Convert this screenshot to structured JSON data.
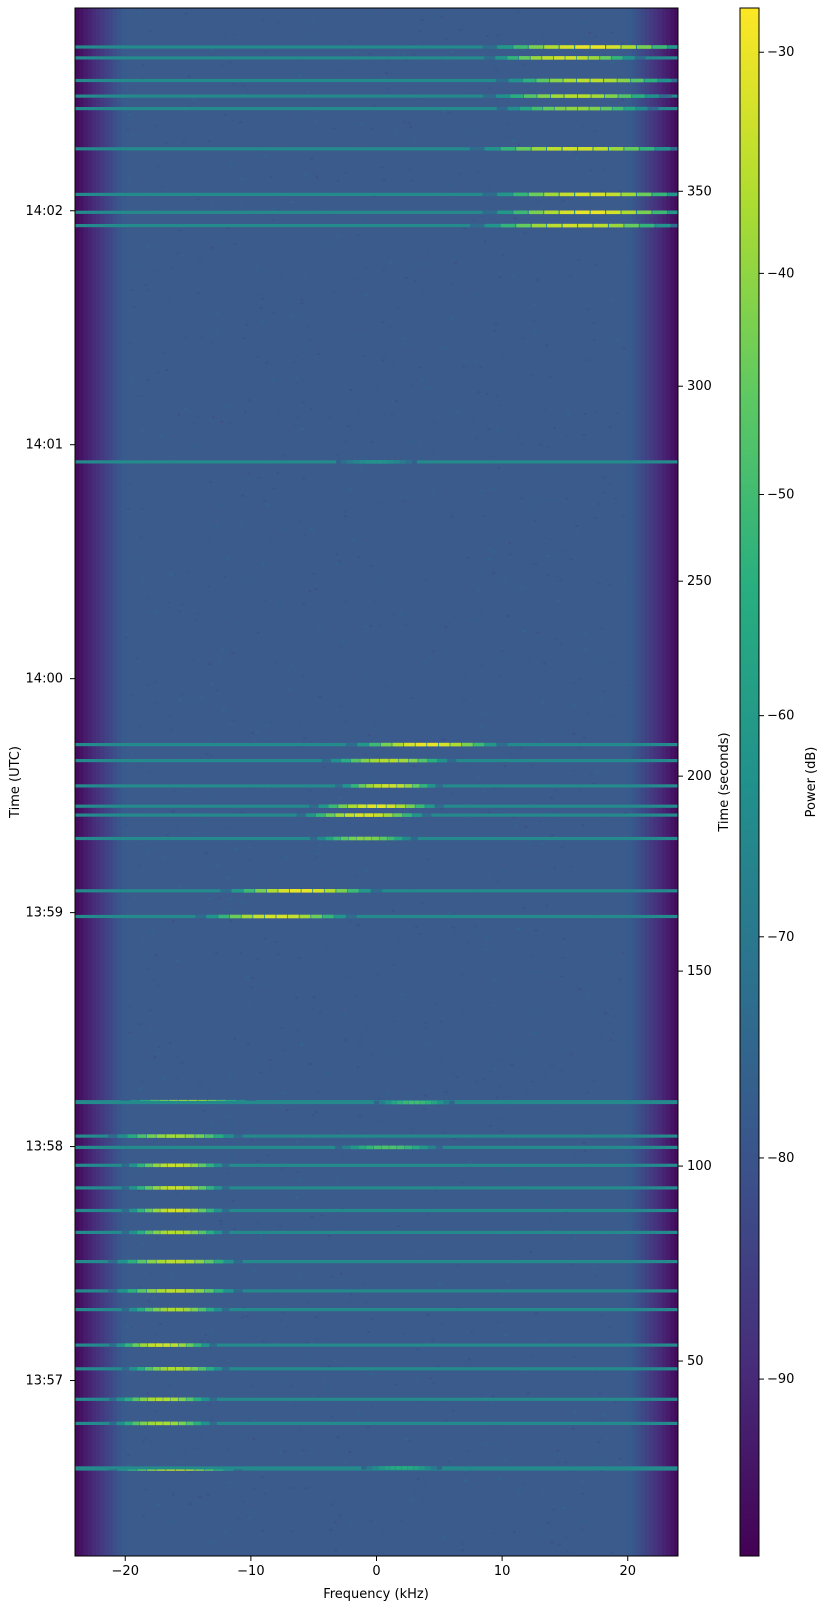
{
  "chart_data": {
    "type": "heatmap",
    "title": "",
    "xlabel": "Frequency (kHz)",
    "ylabel_left": "Time (UTC)",
    "ylabel_right": "Time (seconds)",
    "colorbar_label": "Power (dB)",
    "colormap": "viridis",
    "xlim": [
      -24,
      24
    ],
    "ylim_seconds": [
      0,
      397
    ],
    "x_ticks": [
      {
        "value": -20,
        "label": "−20"
      },
      {
        "value": -10,
        "label": "−10"
      },
      {
        "value": 0,
        "label": "0"
      },
      {
        "value": 10,
        "label": "10"
      },
      {
        "value": 20,
        "label": "20"
      }
    ],
    "y_ticks_utc": [
      {
        "seconds": 45,
        "label": "13:57"
      },
      {
        "seconds": 105,
        "label": "13:58"
      },
      {
        "seconds": 165,
        "label": "13:59"
      },
      {
        "seconds": 225,
        "label": "14:00"
      },
      {
        "seconds": 285,
        "label": "14:01"
      },
      {
        "seconds": 345,
        "label": "14:02"
      }
    ],
    "y_ticks_seconds": [
      {
        "value": 50,
        "label": "50"
      },
      {
        "value": 100,
        "label": "100"
      },
      {
        "value": 150,
        "label": "150"
      },
      {
        "value": 200,
        "label": "200"
      },
      {
        "value": 250,
        "label": "250"
      },
      {
        "value": 300,
        "label": "300"
      },
      {
        "value": 350,
        "label": "350"
      }
    ],
    "colorbar_range_db": [
      -98,
      -28
    ],
    "colorbar_ticks": [
      {
        "value": -30,
        "label": "−30"
      },
      {
        "value": -40,
        "label": "−40"
      },
      {
        "value": -50,
        "label": "−50"
      },
      {
        "value": -60,
        "label": "−60"
      },
      {
        "value": -70,
        "label": "−70"
      },
      {
        "value": -80,
        "label": "−80"
      },
      {
        "value": -90,
        "label": "−90"
      }
    ],
    "noise_floor_db": -78,
    "band_edge_db": -96,
    "passband_khz": [
      -20,
      20
    ],
    "bursts": [
      {
        "t": 387,
        "f_center": 17,
        "f_width": 8,
        "peak_db": -30
      },
      {
        "t": 384.2,
        "f_center": 15,
        "f_width": 6,
        "peak_db": -33
      },
      {
        "t": 378.4,
        "f_center": 17,
        "f_width": 7,
        "peak_db": -35
      },
      {
        "t": 374.4,
        "f_center": 16,
        "f_width": 7,
        "peak_db": -36
      },
      {
        "t": 371.2,
        "f_center": 16,
        "f_width": 6,
        "peak_db": -40
      },
      {
        "t": 360.9,
        "f_center": 16,
        "f_width": 8,
        "peak_db": -33
      },
      {
        "t": 349.2,
        "f_center": 17,
        "f_width": 8,
        "peak_db": -32
      },
      {
        "t": 344.6,
        "f_center": 17,
        "f_width": 8,
        "peak_db": -30
      },
      {
        "t": 341.2,
        "f_center": 16,
        "f_width": 8,
        "peak_db": -33
      },
      {
        "t": 280.6,
        "f_center": 0,
        "f_width": 3,
        "peak_db": -62
      },
      {
        "t": 208.1,
        "f_center": 4,
        "f_width": 6,
        "peak_db": -30
      },
      {
        "t": 204.0,
        "f_center": 1,
        "f_width": 5,
        "peak_db": -36
      },
      {
        "t": 197.5,
        "f_center": 1,
        "f_width": 4,
        "peak_db": -33
      },
      {
        "t": 192.3,
        "f_center": 0,
        "f_width": 5,
        "peak_db": -31
      },
      {
        "t": 190.0,
        "f_center": -1,
        "f_width": 5,
        "peak_db": -32
      },
      {
        "t": 184.0,
        "f_center": -1,
        "f_width": 4,
        "peak_db": -41
      },
      {
        "t": 170.6,
        "f_center": -6,
        "f_width": 6,
        "peak_db": -30
      },
      {
        "t": 164.0,
        "f_center": -8,
        "f_width": 6,
        "peak_db": -32
      },
      {
        "t": 116.5,
        "f_center": -15,
        "f_width": 5,
        "peak_db": -38
      },
      {
        "t": 116.3,
        "f_center": 3,
        "f_width": 3,
        "peak_db": -50
      },
      {
        "t": 107.7,
        "f_center": -16,
        "f_width": 5,
        "peak_db": -38
      },
      {
        "t": 104.8,
        "f_center": 1,
        "f_width": 4,
        "peak_db": -48
      },
      {
        "t": 100.2,
        "f_center": -16,
        "f_width": 4,
        "peak_db": -34
      },
      {
        "t": 94.4,
        "f_center": -16,
        "f_width": 4,
        "peak_db": -34
      },
      {
        "t": 88.6,
        "f_center": -16,
        "f_width": 4,
        "peak_db": -33
      },
      {
        "t": 83.0,
        "f_center": -16,
        "f_width": 4,
        "peak_db": -36
      },
      {
        "t": 75.5,
        "f_center": -16,
        "f_width": 5,
        "peak_db": -35
      },
      {
        "t": 68.0,
        "f_center": -16,
        "f_width": 5,
        "peak_db": -35
      },
      {
        "t": 63.2,
        "f_center": -16,
        "f_width": 4,
        "peak_db": -37
      },
      {
        "t": 54.1,
        "f_center": -17,
        "f_width": 4,
        "peak_db": -33
      },
      {
        "t": 48.0,
        "f_center": -16,
        "f_width": 4,
        "peak_db": -37
      },
      {
        "t": 40.2,
        "f_center": -17,
        "f_width": 4,
        "peak_db": -36
      },
      {
        "t": 34.0,
        "f_center": -17,
        "f_width": 4,
        "peak_db": -37
      },
      {
        "t": 22.3,
        "f_center": -16,
        "f_width": 5,
        "peak_db": -34
      },
      {
        "t": 22.6,
        "f_center": 2,
        "f_width": 3,
        "peak_db": -55
      }
    ]
  }
}
